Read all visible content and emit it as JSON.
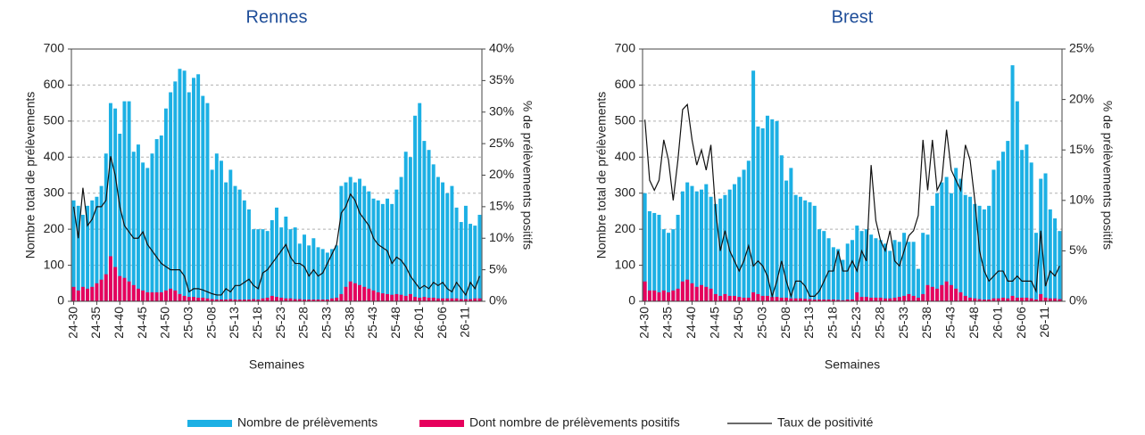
{
  "chart_data": [
    {
      "type": "bar",
      "title": "Rennes",
      "xlabel": "Semaines",
      "ylabel": "Nombre total de prélèvements",
      "y2label": "% de prélèvements positifs",
      "categories": [
        "24-30",
        null,
        null,
        null,
        null,
        "24-35",
        null,
        null,
        null,
        null,
        "24-40",
        null,
        null,
        null,
        null,
        "24-45",
        null,
        null,
        null,
        null,
        "24-50",
        null,
        null,
        null,
        null,
        "25-03",
        null,
        null,
        null,
        null,
        "25-08",
        null,
        null,
        null,
        null,
        "25-13",
        null,
        null,
        null,
        null,
        "25-18",
        null,
        null,
        null,
        null,
        "25-23",
        null,
        null,
        null,
        null,
        "25-28",
        null,
        null,
        null,
        null,
        "25-33",
        null,
        null,
        null,
        null,
        "25-38",
        null,
        null,
        null,
        null,
        "25-43",
        null,
        null,
        null,
        null,
        "25-48",
        null,
        null,
        null,
        null,
        "26-01",
        null,
        null,
        null,
        null,
        "26-06",
        null,
        null,
        null,
        null,
        "26-11",
        null,
        null,
        null
      ],
      "ylim": [
        0,
        700
      ],
      "yticks": [
        0,
        100,
        200,
        300,
        400,
        500,
        600,
        700
      ],
      "y2lim": [
        0,
        40
      ],
      "y2ticks": [
        {
          "value": 0,
          "label": "0%"
        },
        {
          "value": 5,
          "label": "5%"
        },
        {
          "value": 10,
          "label": "10%"
        },
        {
          "value": 15,
          "label": "15%"
        },
        {
          "value": 20,
          "label": "20%"
        },
        {
          "value": 25,
          "label": "25%"
        },
        {
          "value": 30,
          "label": "30%"
        },
        {
          "value": 35,
          "label": "35%"
        },
        {
          "value": 40,
          "label": "40%"
        }
      ],
      "grid": true,
      "series": [
        {
          "name": "Nombre de prélèvements",
          "color": "#1cb0e4",
          "type": "bar",
          "values": [
            280,
            265,
            240,
            265,
            280,
            290,
            320,
            410,
            550,
            535,
            465,
            555,
            555,
            415,
            435,
            385,
            370,
            410,
            450,
            460,
            535,
            580,
            610,
            645,
            640,
            580,
            620,
            630,
            570,
            550,
            365,
            410,
            390,
            330,
            365,
            320,
            310,
            280,
            255,
            200,
            200,
            200,
            195,
            225,
            260,
            205,
            235,
            200,
            205,
            160,
            185,
            155,
            175,
            150,
            145,
            135,
            145,
            155,
            320,
            330,
            345,
            330,
            340,
            320,
            305,
            285,
            280,
            270,
            285,
            270,
            310,
            345,
            415,
            400,
            515,
            550,
            445,
            420,
            380,
            345,
            330,
            300,
            320,
            260,
            220,
            265,
            215,
            210,
            240
          ]
        },
        {
          "name": "Dont nombre de prélèvements positifs",
          "color": "#e6005c",
          "type": "bar",
          "values": [
            40,
            30,
            40,
            35,
            40,
            50,
            60,
            75,
            125,
            95,
            70,
            65,
            55,
            45,
            35,
            30,
            25,
            25,
            25,
            25,
            30,
            35,
            30,
            20,
            15,
            12,
            12,
            10,
            10,
            8,
            6,
            5,
            5,
            5,
            6,
            5,
            5,
            5,
            5,
            6,
            5,
            8,
            10,
            15,
            12,
            10,
            8,
            8,
            6,
            6,
            5,
            5,
            5,
            5,
            5,
            5,
            8,
            10,
            20,
            40,
            55,
            50,
            45,
            40,
            35,
            30,
            25,
            22,
            20,
            18,
            20,
            18,
            15,
            20,
            12,
            10,
            12,
            10,
            10,
            8,
            8,
            8,
            8,
            8,
            6,
            6,
            6,
            8,
            8
          ]
        },
        {
          "name": "Taux de positivité",
          "color": "#111111",
          "type": "line",
          "axis": "y2",
          "values": [
            15,
            10,
            18,
            12,
            13,
            15,
            15,
            16,
            23,
            20,
            15,
            12,
            11,
            10,
            10,
            11,
            9,
            8,
            7,
            6,
            5.5,
            5,
            5,
            5,
            4,
            1.5,
            2,
            2,
            1.8,
            1.5,
            1.2,
            1,
            1,
            2,
            1.5,
            2.5,
            2.5,
            3,
            3.5,
            2.5,
            2,
            4.5,
            5,
            6,
            7,
            8,
            9,
            7,
            6,
            6,
            5.5,
            4,
            5,
            4,
            4.5,
            6,
            7.5,
            9,
            14,
            15,
            17,
            16,
            14,
            13,
            12,
            10,
            9,
            8.5,
            8,
            6,
            7,
            6.5,
            5.5,
            4,
            3,
            2,
            2.5,
            2,
            3,
            2.5,
            3,
            2,
            1.5,
            3,
            2,
            1,
            3,
            2,
            4
          ]
        }
      ]
    },
    {
      "type": "bar",
      "title": "Brest",
      "xlabel": "Semaines",
      "ylabel": "Nombre total de prélèvements",
      "y2label": "% de prélèvements positifs",
      "categories": [
        "24-30",
        null,
        null,
        null,
        null,
        "24-35",
        null,
        null,
        null,
        null,
        "24-40",
        null,
        null,
        null,
        null,
        "24-45",
        null,
        null,
        null,
        null,
        "24-50",
        null,
        null,
        null,
        null,
        "25-03",
        null,
        null,
        null,
        null,
        "25-08",
        null,
        null,
        null,
        null,
        "25-13",
        null,
        null,
        null,
        null,
        "25-18",
        null,
        null,
        null,
        null,
        "25-23",
        null,
        null,
        null,
        null,
        "25-28",
        null,
        null,
        null,
        null,
        "25-33",
        null,
        null,
        null,
        null,
        "25-38",
        null,
        null,
        null,
        null,
        "25-43",
        null,
        null,
        null,
        null,
        "25-48",
        null,
        null,
        null,
        null,
        "26-01",
        null,
        null,
        null,
        null,
        "26-06",
        null,
        null,
        null,
        null,
        "26-11",
        null,
        null,
        null
      ],
      "ylim": [
        0,
        700
      ],
      "yticks": [
        0,
        100,
        200,
        300,
        400,
        500,
        600,
        700
      ],
      "y2lim": [
        0,
        25
      ],
      "y2ticks": [
        {
          "value": 0,
          "label": "0%"
        },
        {
          "value": 5,
          "label": "5%"
        },
        {
          "value": 10,
          "label": "10%"
        },
        {
          "value": 15,
          "label": "15%"
        },
        {
          "value": 20,
          "label": "20%"
        },
        {
          "value": 25,
          "label": "25%"
        }
      ],
      "grid": true,
      "series": [
        {
          "name": "Nombre de prélèvements",
          "color": "#1cb0e4",
          "type": "bar",
          "values": [
            300,
            250,
            245,
            240,
            200,
            190,
            200,
            240,
            305,
            330,
            320,
            305,
            310,
            325,
            290,
            270,
            285,
            295,
            310,
            325,
            345,
            365,
            390,
            640,
            485,
            480,
            515,
            505,
            500,
            405,
            335,
            370,
            295,
            290,
            280,
            275,
            265,
            200,
            195,
            175,
            150,
            145,
            115,
            160,
            170,
            210,
            195,
            200,
            185,
            175,
            170,
            160,
            140,
            170,
            165,
            190,
            165,
            165,
            90,
            190,
            185,
            265,
            300,
            330,
            345,
            300,
            370,
            340,
            295,
            290,
            270,
            265,
            255,
            265,
            365,
            390,
            415,
            445,
            655,
            555,
            420,
            435,
            385,
            190,
            340,
            355,
            255,
            230,
            195
          ]
        },
        {
          "name": "Dont nombre de prélèvements positifs",
          "color": "#e6005c",
          "type": "bar",
          "values": [
            55,
            30,
            30,
            25,
            30,
            25,
            30,
            35,
            55,
            60,
            50,
            40,
            45,
            40,
            35,
            20,
            15,
            20,
            15,
            15,
            12,
            10,
            10,
            25,
            20,
            15,
            15,
            12,
            12,
            10,
            10,
            8,
            8,
            8,
            7,
            6,
            5,
            5,
            5,
            5,
            5,
            4,
            3,
            5,
            5,
            25,
            12,
            12,
            10,
            10,
            10,
            8,
            8,
            10,
            12,
            15,
            20,
            15,
            10,
            20,
            45,
            40,
            35,
            45,
            55,
            45,
            35,
            25,
            15,
            10,
            8,
            6,
            5,
            5,
            8,
            8,
            10,
            8,
            15,
            10,
            10,
            10,
            8,
            5,
            20,
            10,
            8,
            8,
            6
          ]
        },
        {
          "name": "Taux de positivité",
          "color": "#111111",
          "type": "line",
          "axis": "y2",
          "values": [
            18,
            12,
            11,
            12,
            16,
            14,
            10,
            14,
            19,
            19.5,
            16,
            13.5,
            15,
            13,
            15.5,
            9,
            5,
            7,
            5,
            4,
            3,
            4,
            5.5,
            3.5,
            4,
            3.5,
            2.5,
            0.5,
            2,
            4,
            2,
            0.5,
            2,
            2,
            1.5,
            0.5,
            0.5,
            1,
            2,
            3,
            3,
            5,
            3,
            3,
            4,
            3,
            5,
            4,
            13.5,
            8,
            6,
            5,
            7,
            4,
            3.5,
            5,
            6.5,
            7,
            8.5,
            16,
            11,
            16,
            11,
            12,
            17,
            13,
            12,
            11,
            15.5,
            14,
            10,
            5,
            3,
            2,
            2.5,
            3,
            3,
            2,
            2,
            2.5,
            2,
            2,
            2,
            1,
            7,
            1.5,
            3,
            2.5,
            3.5
          ]
        }
      ]
    }
  ]
}
